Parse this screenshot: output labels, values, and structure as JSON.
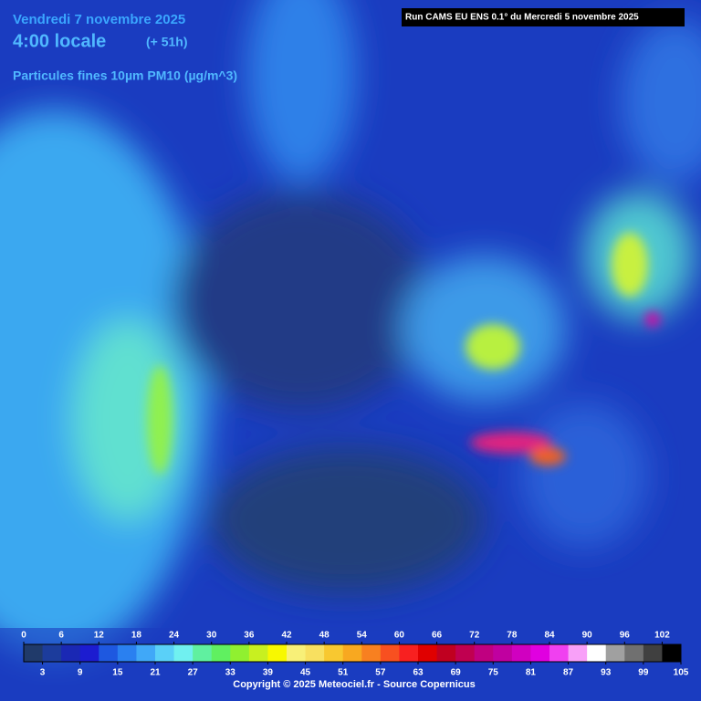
{
  "header": {
    "date": "Vendredi 7 novembre 2025",
    "time": "4:00 locale",
    "lead": "(+ 51h)",
    "variable": "Particules fines 10µm PM10 (µg/m^3)",
    "run": "Run CAMS EU ENS 0.1° du Mercredi 5 novembre 2025"
  },
  "legend": {
    "ticks": [
      0,
      3,
      6,
      9,
      12,
      15,
      18,
      21,
      24,
      27,
      30,
      33,
      36,
      39,
      42,
      45,
      48,
      51,
      54,
      57,
      60,
      63,
      66,
      69,
      72,
      75,
      78,
      81,
      84,
      87,
      90,
      93,
      96,
      99,
      102,
      105
    ],
    "colors": [
      "#203a6a",
      "#1c3c9c",
      "#1a28b4",
      "#1c1cd0",
      "#1e58e0",
      "#2a80f0",
      "#40a8f8",
      "#5ad0f8",
      "#70f0f0",
      "#60f0a0",
      "#60f060",
      "#90f030",
      "#c8f020",
      "#f8f800",
      "#f8f078",
      "#f8e060",
      "#f8c830",
      "#f8a820",
      "#f88020",
      "#f85020",
      "#f82020",
      "#e00000",
      "#c00020",
      "#c00050",
      "#c00080",
      "#c000a0",
      "#d000c0",
      "#e000e0",
      "#f040f0",
      "#f8a0f8",
      "#ffffff",
      "#a0a0a0",
      "#707070",
      "#404040",
      "#000000"
    ]
  },
  "footer": {
    "copyright": "Copyright © 2025 Meteociel.fr - Source Copernicus"
  }
}
